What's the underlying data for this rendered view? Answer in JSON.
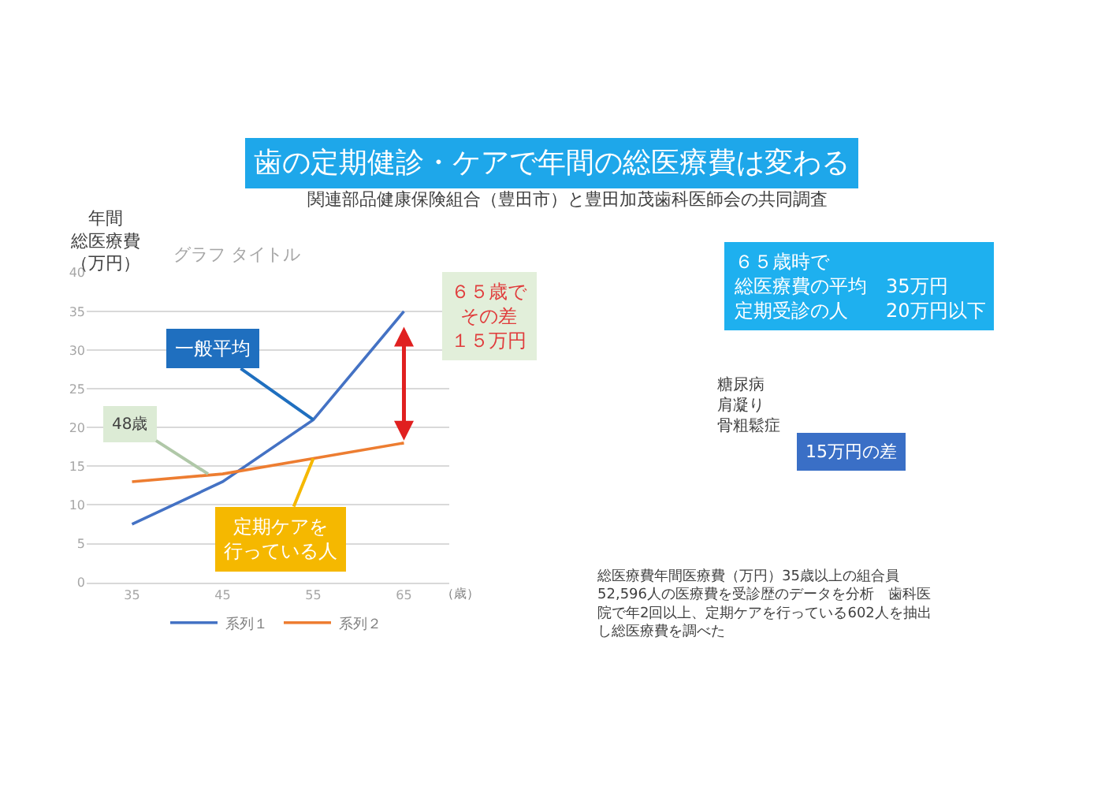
{
  "chart_data": {
    "type": "line",
    "title": "歯の定期健診・ケアで年間の総医療費は変わる",
    "subtitle": "関連部品健康保険組合（豊田市）と豊田加茂歯科医師会の共同調査",
    "ylabel": "年間総医療費（万円）",
    "xlabel": "（歳）",
    "categories": [
      "35",
      "45",
      "55",
      "65"
    ],
    "series": [
      {
        "name": "系列１",
        "color": "#4472c4",
        "values": [
          7.5,
          13,
          21,
          35
        ]
      },
      {
        "name": "系列２",
        "color": "#ed7d31",
        "values": [
          13,
          14,
          16,
          18
        ]
      }
    ],
    "ylim": [
      0,
      40
    ],
    "yticks": [
      0,
      5,
      10,
      15,
      20,
      25,
      30,
      35,
      40
    ],
    "grid": "y",
    "legend": "bottom",
    "marker": "none",
    "line_style": "solid",
    "annotations": [
      "グラフ タイトル",
      {
        "text": "一般平均",
        "x": "55",
        "y": 21
      },
      {
        "text": "定期ケアを行っている人",
        "x": "55",
        "y": 16
      },
      {
        "text": "48歳",
        "y": 14
      },
      "６５歳でその差１５万円",
      "６５歳時で総医療費の平均　35万円定期受診の人　　20万円以下",
      "糖尿病肩凝り骨粗鬆症",
      "15万円の差",
      "総医療費年間医療費（万円）35歳以上の組合員52,596人の医療費を受診歴のデータを分析　歯科医院で年2回以上、定期ケアを行っている602人を抽出し総医療費を調べた"
    ]
  }
}
